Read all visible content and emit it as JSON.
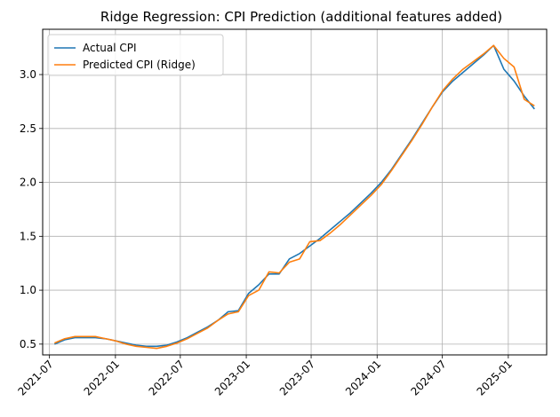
{
  "chart_data": {
    "type": "line",
    "title": "Ridge Regression: CPI Prediction (additional features added)",
    "xlabel": "",
    "ylabel": "",
    "x_start": "2021-07-15",
    "x_end": "2025-03-15",
    "xlim": [
      "2021-06-12",
      "2025-04-18"
    ],
    "ylim": [
      0.4,
      3.42
    ],
    "x_ticks": [
      "2021-07",
      "2022-01",
      "2022-07",
      "2023-01",
      "2023-07",
      "2024-01",
      "2024-07",
      "2025-01"
    ],
    "y_ticks": [
      "0.5",
      "1.0",
      "1.5",
      "2.0",
      "2.5",
      "3.0"
    ],
    "grid": true,
    "legend_position": "top-left",
    "series": [
      {
        "name": "Actual CPI",
        "color": "#1f77b4",
        "values": [
          0.5,
          0.54,
          0.56,
          0.56,
          0.56,
          0.55,
          0.53,
          0.51,
          0.49,
          0.48,
          0.48,
          0.49,
          0.52,
          0.56,
          0.61,
          0.66,
          0.72,
          0.8,
          0.81,
          0.97,
          1.05,
          1.15,
          1.15,
          1.29,
          1.34,
          1.41,
          1.48,
          1.56,
          1.64,
          1.72,
          1.81,
          1.9,
          2.0,
          2.12,
          2.26,
          2.4,
          2.55,
          2.7,
          2.84,
          2.94,
          3.02,
          3.1,
          3.18,
          3.27,
          3.05,
          2.94,
          2.8,
          2.68
        ]
      },
      {
        "name": "Predicted CPI (Ridge)",
        "color": "#ff7f0e",
        "values": [
          0.51,
          0.55,
          0.57,
          0.57,
          0.57,
          0.55,
          0.53,
          0.5,
          0.48,
          0.47,
          0.46,
          0.48,
          0.51,
          0.55,
          0.6,
          0.65,
          0.72,
          0.78,
          0.8,
          0.95,
          1.0,
          1.17,
          1.16,
          1.26,
          1.29,
          1.45,
          1.46,
          1.53,
          1.61,
          1.7,
          1.79,
          1.88,
          1.98,
          2.11,
          2.25,
          2.39,
          2.54,
          2.7,
          2.85,
          2.96,
          3.05,
          3.12,
          3.19,
          3.27,
          3.15,
          3.07,
          2.77,
          2.71
        ]
      }
    ]
  }
}
